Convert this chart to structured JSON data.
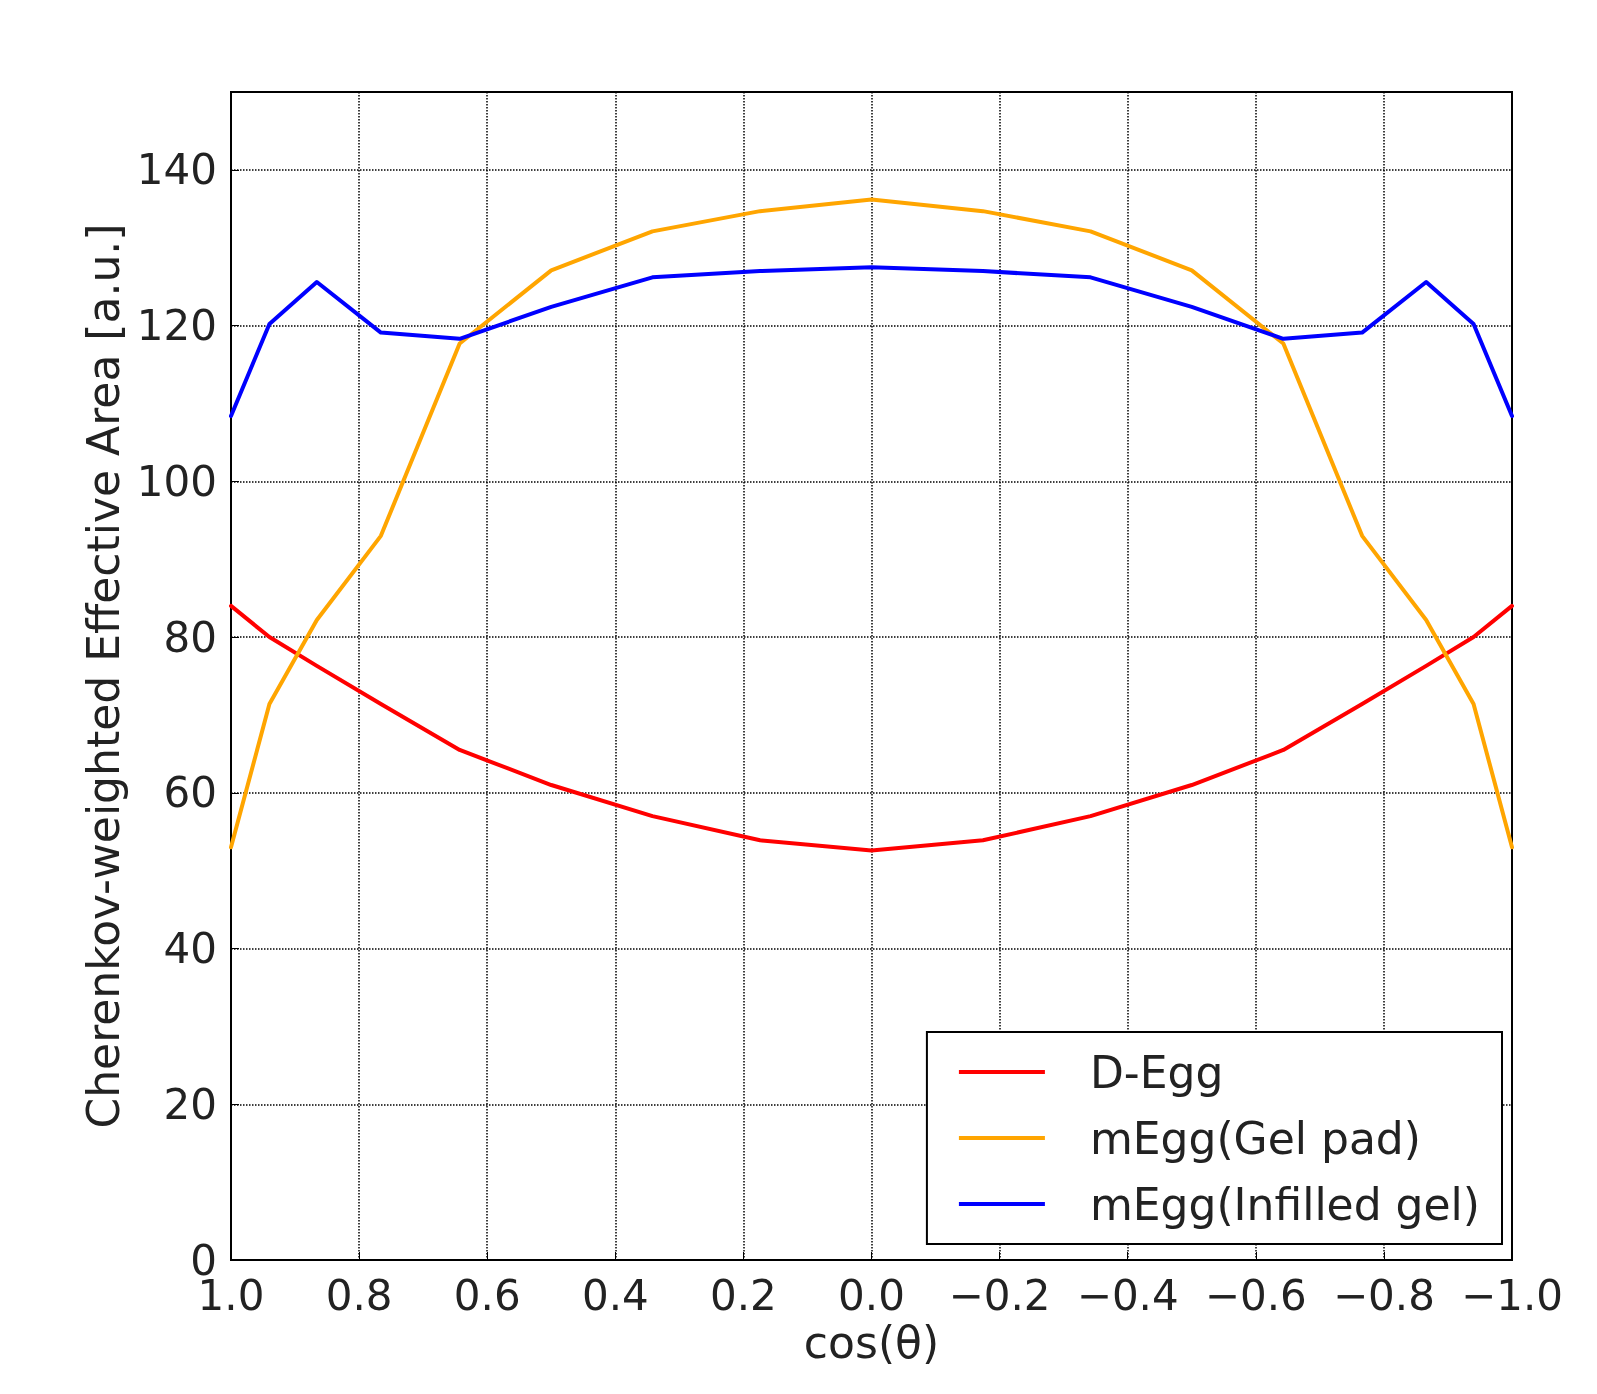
{
  "chart_data": {
    "type": "line",
    "xlabel": "cos(θ)",
    "ylabel": "Cherenkov-weighted Effective Area [a.u.]",
    "x": [
      1.0,
      0.94,
      0.866,
      0.766,
      0.643,
      0.5,
      0.342,
      0.174,
      0.0,
      -0.174,
      -0.342,
      -0.5,
      -0.643,
      -0.766,
      -0.866,
      -0.94,
      -1.0
    ],
    "series": [
      {
        "name": "D-Egg",
        "color": "#ff0000",
        "values": [
          84,
          80,
          76.3,
          71.4,
          65.5,
          61,
          57,
          53.9,
          52.6,
          53.9,
          57,
          61,
          65.5,
          71.4,
          76.3,
          80,
          84
        ]
      },
      {
        "name": "mEgg(Gel pad)",
        "color": "#ffa500",
        "values": [
          53,
          71.4,
          82.2,
          93,
          117.7,
          127.1,
          132.1,
          134.7,
          136.2,
          134.7,
          132.1,
          127.1,
          117.7,
          93,
          82.2,
          71.4,
          53
        ]
      },
      {
        "name": "mEgg(Infilled gel)",
        "color": "#0000ff",
        "values": [
          108.4,
          120.2,
          125.6,
          119.1,
          118.3,
          122.4,
          126.2,
          127,
          127.5,
          127,
          126.2,
          122.4,
          118.3,
          119.1,
          125.6,
          120.2,
          108.4
        ]
      }
    ],
    "xlim": [
      1.0,
      -1.0
    ],
    "xticks": [
      {
        "value": 1.0,
        "label": "1.0"
      },
      {
        "value": 0.8,
        "label": "0.8"
      },
      {
        "value": 0.6,
        "label": "0.6"
      },
      {
        "value": 0.4,
        "label": "0.4"
      },
      {
        "value": 0.2,
        "label": "0.2"
      },
      {
        "value": 0.0,
        "label": "0.0"
      },
      {
        "value": -0.2,
        "label": "−0.2"
      },
      {
        "value": -0.4,
        "label": "−0.4"
      },
      {
        "value": -0.6,
        "label": "−0.6"
      },
      {
        "value": -0.8,
        "label": "−0.8"
      },
      {
        "value": -1.0,
        "label": "−1.0"
      }
    ],
    "ylim": [
      0,
      150
    ],
    "yticks": [
      0,
      20,
      40,
      60,
      80,
      100,
      120,
      140
    ],
    "grid": true,
    "legend": "bottom right",
    "marker": "none",
    "line_style": "solid"
  }
}
